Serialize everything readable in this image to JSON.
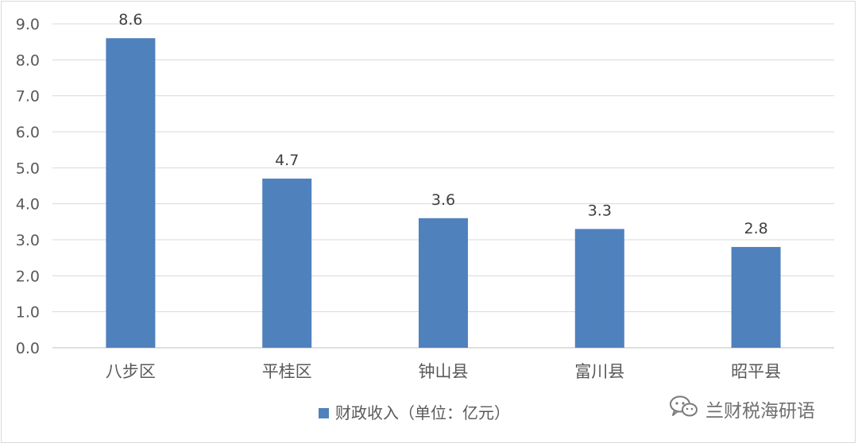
{
  "chart_data": {
    "type": "bar",
    "categories": [
      "八步区",
      "平桂区",
      "钟山县",
      "富川县",
      "昭平县"
    ],
    "series": [
      {
        "name": "财政收入（单位：亿元）",
        "values": [
          8.6,
          4.7,
          3.6,
          3.3,
          2.8
        ]
      }
    ],
    "data_labels": [
      "8.6",
      "4.7",
      "3.6",
      "3.3",
      "2.8"
    ],
    "y_ticks": [
      "0.0",
      "1.0",
      "2.0",
      "3.0",
      "4.0",
      "5.0",
      "6.0",
      "7.0",
      "8.0",
      "9.0"
    ],
    "ylim": [
      0,
      9
    ],
    "grid": true,
    "legend_position": "bottom",
    "bar_color": "#4f81bd"
  },
  "watermark": {
    "text": "兰财税海研语",
    "icon": "wechat-icon"
  }
}
